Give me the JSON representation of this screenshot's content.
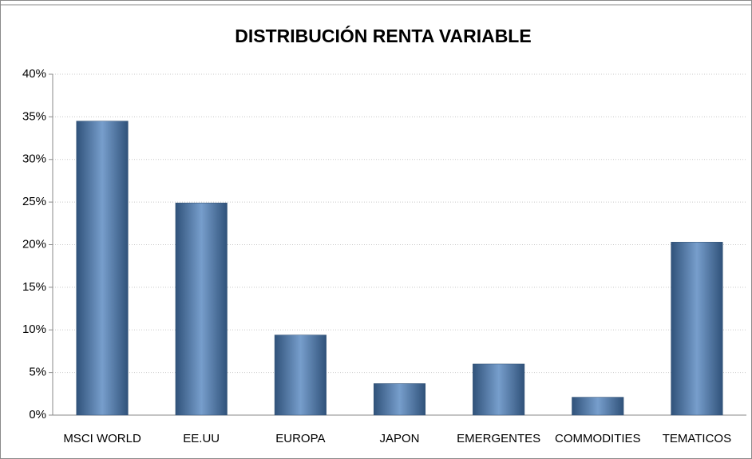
{
  "chart_data": {
    "type": "bar",
    "title": "DISTRIBUCIÓN RENTA VARIABLE",
    "categories": [
      "MSCI WORLD",
      "EE.UU",
      "EUROPA",
      "JAPON",
      "EMERGENTES",
      "COMMODITIES",
      "TEMATICOS"
    ],
    "values": [
      34.5,
      24.9,
      9.4,
      3.7,
      6.0,
      2.1,
      20.3
    ],
    "color": "#4a7ebb",
    "ylim": [
      0,
      40
    ],
    "yticks": [
      {
        "value": 0,
        "label": "0%"
      },
      {
        "value": 5,
        "label": "5%"
      },
      {
        "value": 10,
        "label": "10%"
      },
      {
        "value": 15,
        "label": "15%"
      },
      {
        "value": 20,
        "label": "20%"
      },
      {
        "value": 25,
        "label": "25%"
      },
      {
        "value": 30,
        "label": "30%"
      },
      {
        "value": 35,
        "label": "35%"
      },
      {
        "value": 40,
        "label": "40%"
      }
    ],
    "grid": true
  }
}
